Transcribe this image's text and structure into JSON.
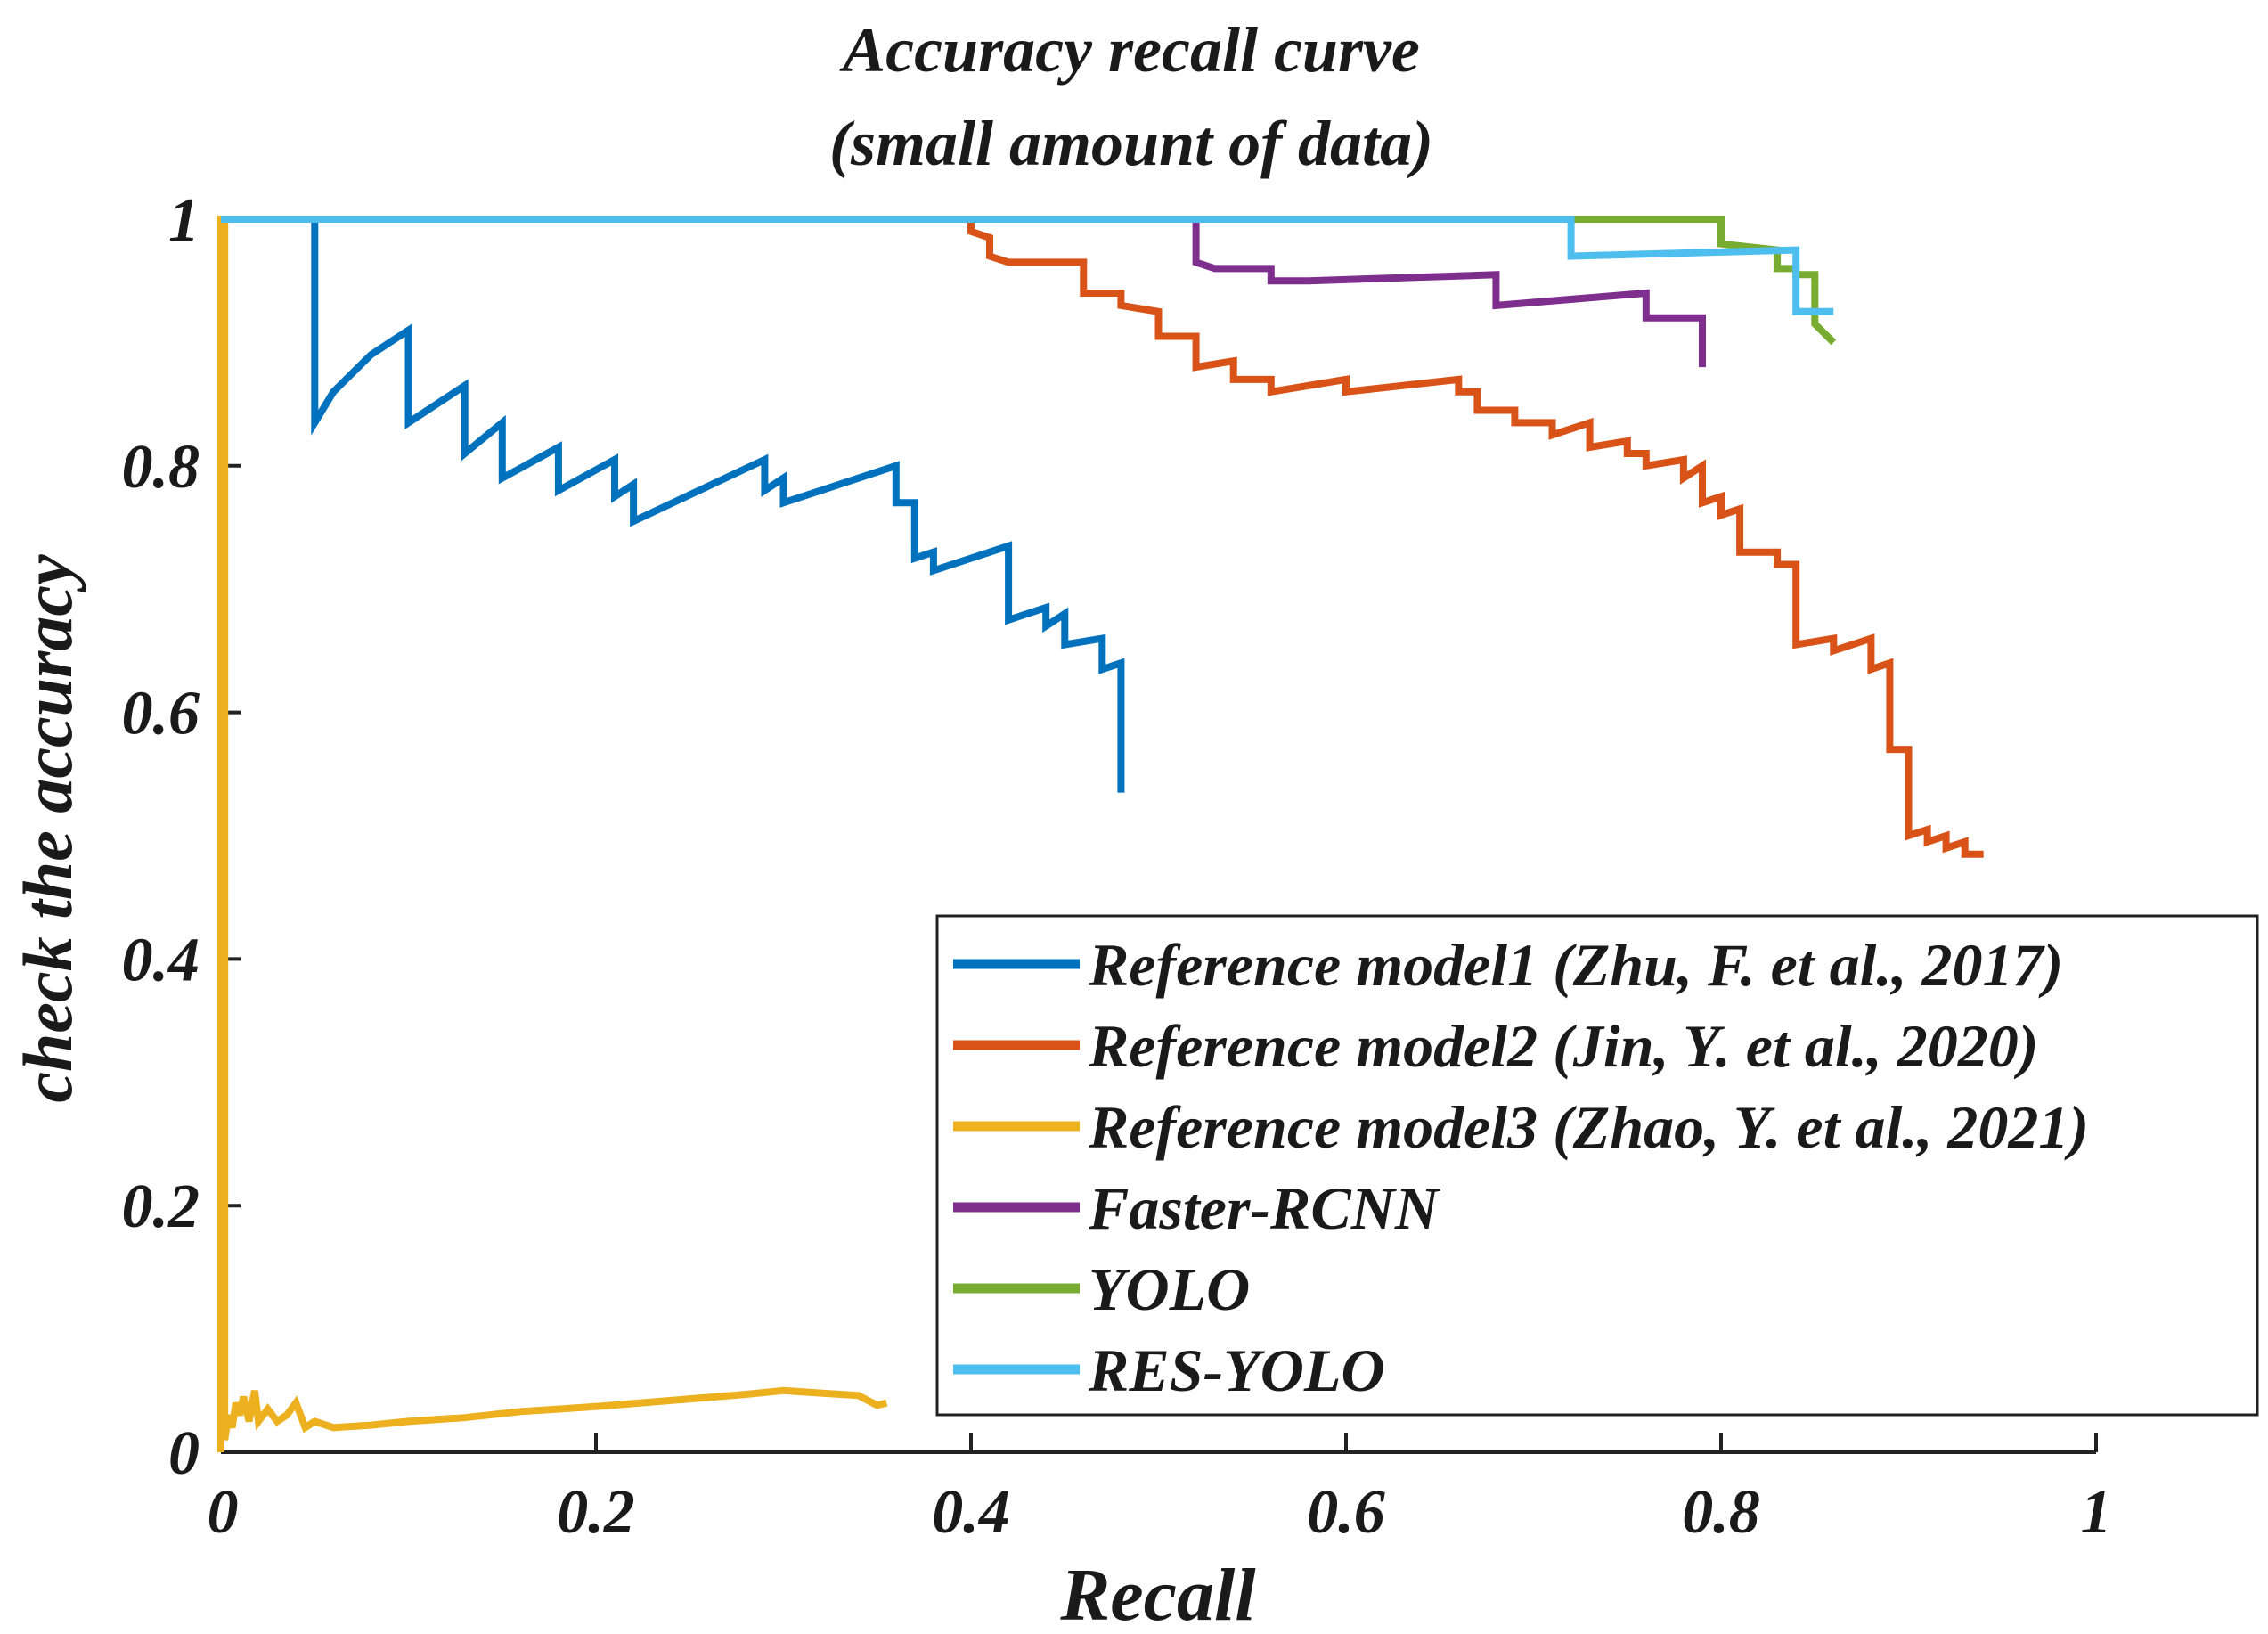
{
  "chart_data": {
    "type": "line",
    "title_lines": [
      "Accuracy recall curve",
      "(small amount of data)"
    ],
    "xlabel": "Recall",
    "ylabel": "check the accuracy",
    "xlim": [
      0,
      1.0
    ],
    "ylim": [
      0,
      1.0
    ],
    "xticks": [
      0,
      0.2,
      0.4,
      0.6,
      0.8,
      1
    ],
    "yticks": [
      0,
      0.2,
      0.4,
      0.6,
      0.8,
      1
    ],
    "xtick_labels": [
      "0",
      "0.2",
      "0.4",
      "0.6",
      "0.8",
      "1"
    ],
    "ytick_labels": [
      "0",
      "0.2",
      "0.4",
      "0.6",
      "0.8",
      "1"
    ],
    "legend_position": "bottom-right",
    "series": [
      {
        "name": "Reference model1 (Zhu, F. et al., 2017)",
        "color": "#0072BD",
        "points": [
          [
            0,
            1
          ],
          [
            0.05,
            1
          ],
          [
            0.05,
            0.835
          ],
          [
            0.06,
            0.86
          ],
          [
            0.08,
            0.89
          ],
          [
            0.1,
            0.91
          ],
          [
            0.1,
            0.835
          ],
          [
            0.13,
            0.865
          ],
          [
            0.13,
            0.81
          ],
          [
            0.15,
            0.835
          ],
          [
            0.15,
            0.79
          ],
          [
            0.18,
            0.815
          ],
          [
            0.18,
            0.78
          ],
          [
            0.21,
            0.805
          ],
          [
            0.21,
            0.775
          ],
          [
            0.22,
            0.785
          ],
          [
            0.22,
            0.755
          ],
          [
            0.29,
            0.805
          ],
          [
            0.29,
            0.78
          ],
          [
            0.3,
            0.79
          ],
          [
            0.3,
            0.77
          ],
          [
            0.36,
            0.8
          ],
          [
            0.36,
            0.77
          ],
          [
            0.37,
            0.77
          ],
          [
            0.37,
            0.725
          ],
          [
            0.38,
            0.73
          ],
          [
            0.38,
            0.715
          ],
          [
            0.42,
            0.735
          ],
          [
            0.42,
            0.675
          ],
          [
            0.44,
            0.685
          ],
          [
            0.44,
            0.67
          ],
          [
            0.45,
            0.68
          ],
          [
            0.45,
            0.655
          ],
          [
            0.47,
            0.66
          ],
          [
            0.47,
            0.635
          ],
          [
            0.48,
            0.64
          ],
          [
            0.48,
            0.535
          ]
        ]
      },
      {
        "name": "Reference model2 (Jin, Y. et al., 2020)",
        "color": "#D95319",
        "points": [
          [
            0.4,
            1
          ],
          [
            0.4,
            0.99
          ],
          [
            0.41,
            0.985
          ],
          [
            0.41,
            0.97
          ],
          [
            0.42,
            0.965
          ],
          [
            0.46,
            0.965
          ],
          [
            0.46,
            0.94
          ],
          [
            0.48,
            0.94
          ],
          [
            0.48,
            0.93
          ],
          [
            0.5,
            0.925
          ],
          [
            0.5,
            0.905
          ],
          [
            0.52,
            0.905
          ],
          [
            0.52,
            0.88
          ],
          [
            0.54,
            0.885
          ],
          [
            0.54,
            0.87
          ],
          [
            0.56,
            0.87
          ],
          [
            0.56,
            0.86
          ],
          [
            0.6,
            0.87
          ],
          [
            0.6,
            0.86
          ],
          [
            0.66,
            0.87
          ],
          [
            0.66,
            0.86
          ],
          [
            0.67,
            0.86
          ],
          [
            0.67,
            0.845
          ],
          [
            0.69,
            0.845
          ],
          [
            0.69,
            0.835
          ],
          [
            0.71,
            0.835
          ],
          [
            0.71,
            0.825
          ],
          [
            0.73,
            0.835
          ],
          [
            0.73,
            0.815
          ],
          [
            0.75,
            0.82
          ],
          [
            0.75,
            0.81
          ],
          [
            0.76,
            0.81
          ],
          [
            0.76,
            0.8
          ],
          [
            0.78,
            0.805
          ],
          [
            0.78,
            0.79
          ],
          [
            0.79,
            0.8
          ],
          [
            0.79,
            0.77
          ],
          [
            0.8,
            0.775
          ],
          [
            0.8,
            0.76
          ],
          [
            0.81,
            0.765
          ],
          [
            0.81,
            0.73
          ],
          [
            0.83,
            0.73
          ],
          [
            0.83,
            0.72
          ],
          [
            0.84,
            0.72
          ],
          [
            0.84,
            0.655
          ],
          [
            0.86,
            0.66
          ],
          [
            0.86,
            0.65
          ],
          [
            0.88,
            0.66
          ],
          [
            0.88,
            0.635
          ],
          [
            0.89,
            0.64
          ],
          [
            0.89,
            0.57
          ],
          [
            0.9,
            0.57
          ],
          [
            0.9,
            0.5
          ],
          [
            0.91,
            0.505
          ],
          [
            0.91,
            0.495
          ],
          [
            0.92,
            0.5
          ],
          [
            0.92,
            0.49
          ],
          [
            0.93,
            0.495
          ],
          [
            0.93,
            0.485
          ],
          [
            0.94,
            0.485
          ]
        ]
      },
      {
        "name": "Reference model3 (Zhao, Y. et al., 2021)",
        "color": "#EDB120",
        "points": [
          [
            0,
            0
          ],
          [
            0,
            1
          ],
          [
            0.002,
            1
          ],
          [
            0.002,
            0.01
          ],
          [
            0.004,
            0.03
          ],
          [
            0.006,
            0.02
          ],
          [
            0.008,
            0.04
          ],
          [
            0.01,
            0.03
          ],
          [
            0.012,
            0.045
          ],
          [
            0.015,
            0.025
          ],
          [
            0.018,
            0.05
          ],
          [
            0.02,
            0.025
          ],
          [
            0.025,
            0.035
          ],
          [
            0.03,
            0.025
          ],
          [
            0.035,
            0.03
          ],
          [
            0.04,
            0.04
          ],
          [
            0.045,
            0.02
          ],
          [
            0.05,
            0.025
          ],
          [
            0.06,
            0.02
          ],
          [
            0.08,
            0.022
          ],
          [
            0.1,
            0.025
          ],
          [
            0.13,
            0.028
          ],
          [
            0.16,
            0.033
          ],
          [
            0.2,
            0.037
          ],
          [
            0.24,
            0.042
          ],
          [
            0.28,
            0.047
          ],
          [
            0.3,
            0.05
          ],
          [
            0.32,
            0.048
          ],
          [
            0.34,
            0.046
          ],
          [
            0.35,
            0.038
          ],
          [
            0.355,
            0.04
          ]
        ]
      },
      {
        "name": "Faster-RCNN",
        "color": "#7E2F8E",
        "points": [
          [
            0.52,
            1
          ],
          [
            0.52,
            0.965
          ],
          [
            0.53,
            0.96
          ],
          [
            0.56,
            0.96
          ],
          [
            0.56,
            0.95
          ],
          [
            0.58,
            0.95
          ],
          [
            0.68,
            0.955
          ],
          [
            0.68,
            0.93
          ],
          [
            0.76,
            0.94
          ],
          [
            0.76,
            0.92
          ],
          [
            0.79,
            0.92
          ],
          [
            0.79,
            0.88
          ]
        ]
      },
      {
        "name": "YOLO",
        "color": "#77AC30",
        "points": [
          [
            0.72,
            1
          ],
          [
            0.8,
            1
          ],
          [
            0.8,
            0.98
          ],
          [
            0.83,
            0.975
          ],
          [
            0.83,
            0.96
          ],
          [
            0.84,
            0.96
          ],
          [
            0.84,
            0.955
          ],
          [
            0.85,
            0.955
          ],
          [
            0.85,
            0.915
          ],
          [
            0.86,
            0.9
          ]
        ]
      },
      {
        "name": "RES-YOLO",
        "color": "#4DBEEE",
        "points": [
          [
            0,
            1
          ],
          [
            0.72,
            1
          ],
          [
            0.72,
            0.97
          ],
          [
            0.84,
            0.975
          ],
          [
            0.84,
            0.925
          ],
          [
            0.86,
            0.925
          ]
        ]
      }
    ]
  }
}
